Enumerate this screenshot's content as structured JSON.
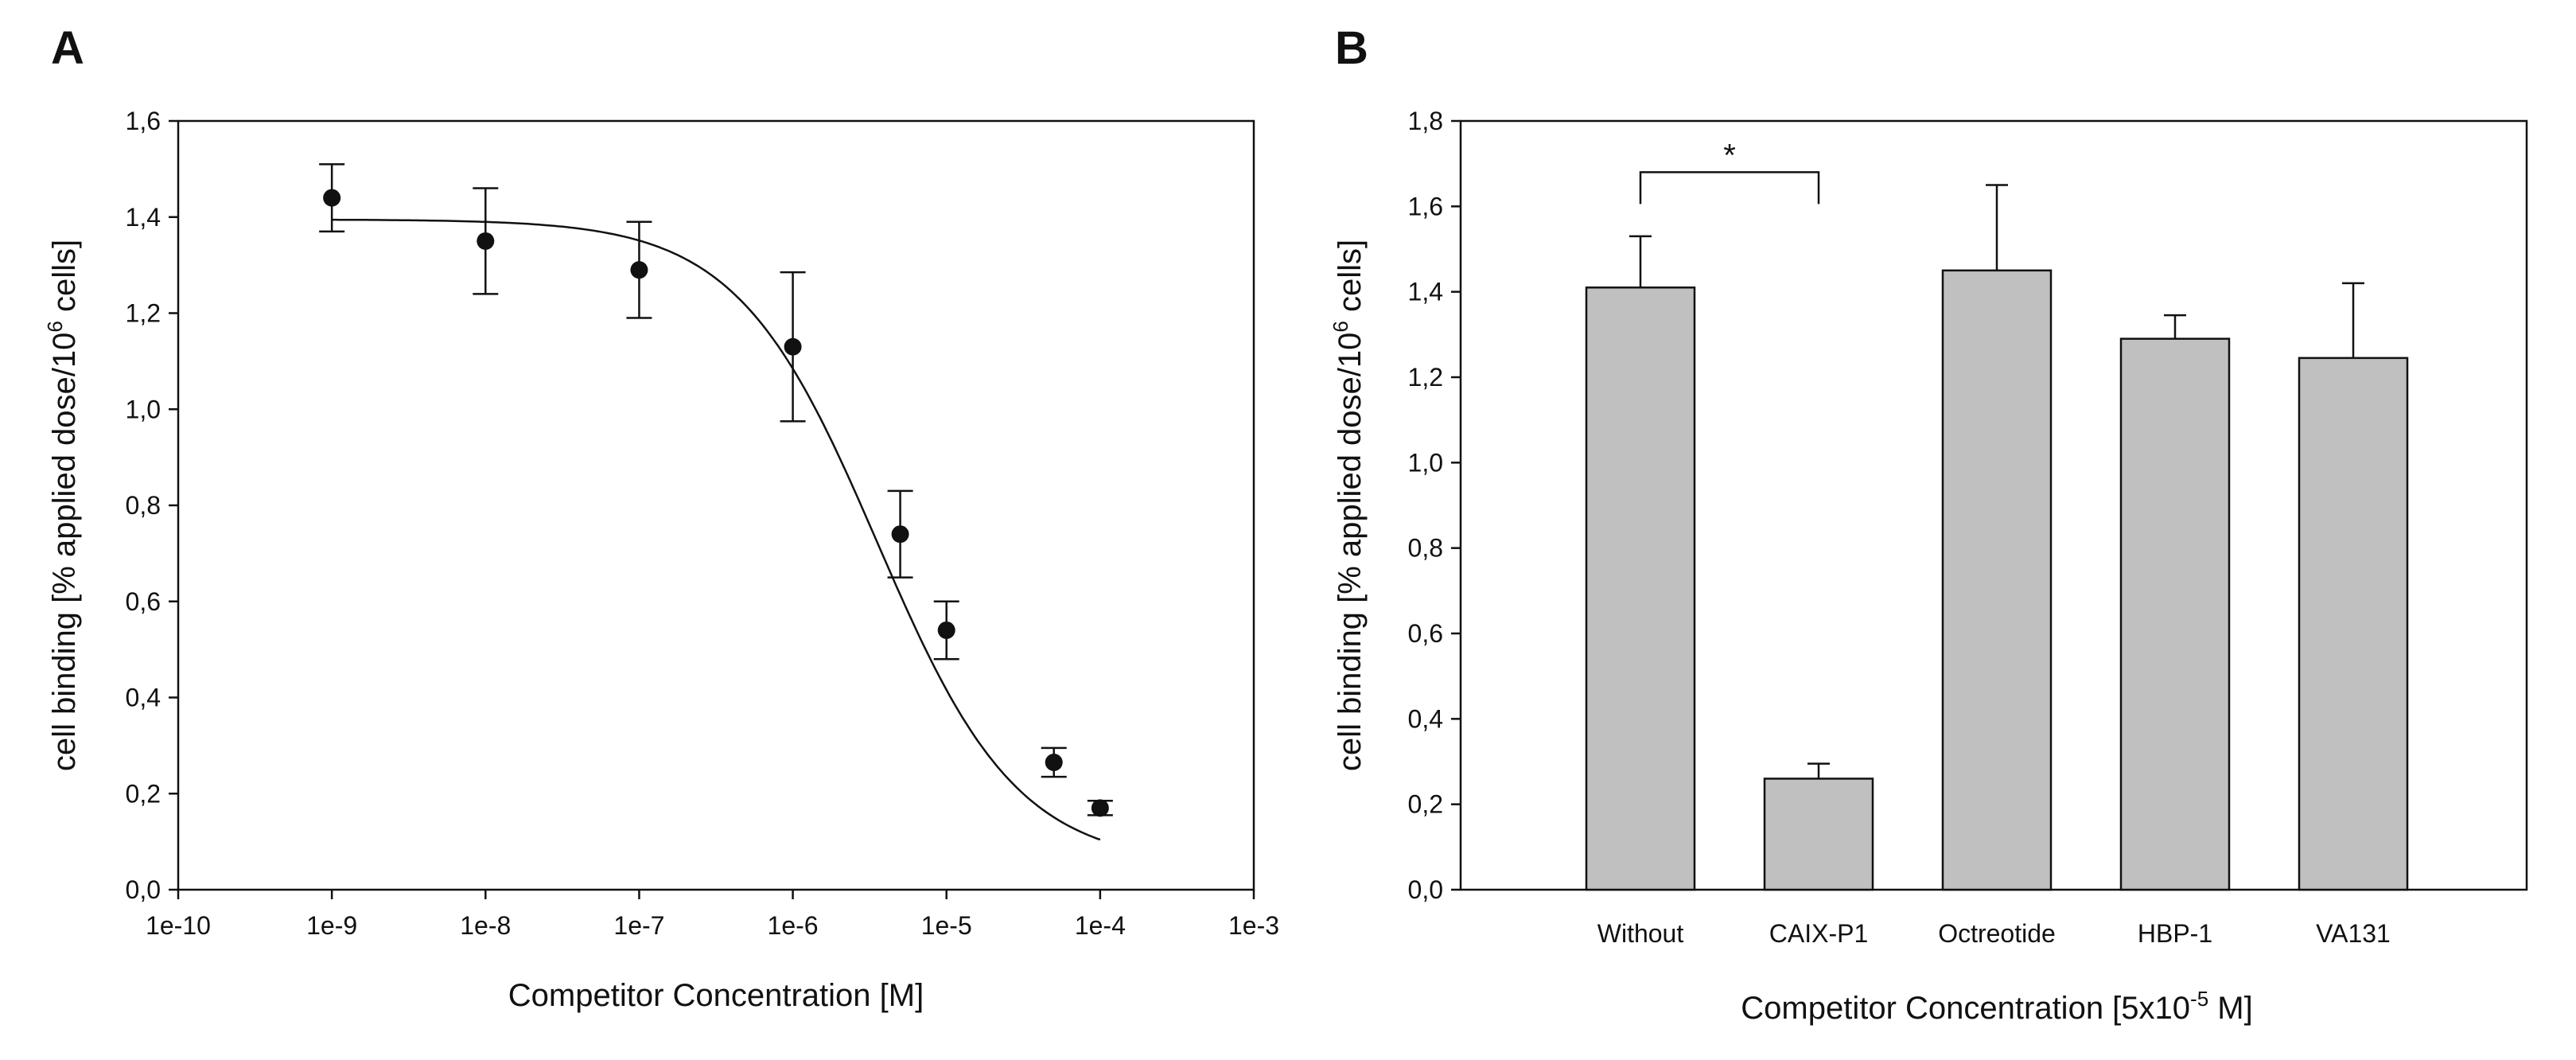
{
  "figure": {
    "panel_a_letter": "A",
    "panel_b_letter": "B"
  },
  "chart_data": [
    {
      "type": "scatter",
      "panel": "A",
      "xscale": "log",
      "xlim_exp": [
        -10,
        -3
      ],
      "x_tick_labels": [
        "1e-10",
        "1e-9",
        "1e-8",
        "1e-7",
        "1e-6",
        "1e-5",
        "1e-4",
        "1e-3"
      ],
      "ylim": [
        0,
        1.6
      ],
      "y_ticks": [
        0,
        0.2,
        0.4,
        0.6,
        0.8,
        1.0,
        1.2,
        1.4,
        1.6
      ],
      "y_tick_labels": [
        "0,0",
        "0,2",
        "0,4",
        "0,6",
        "0,8",
        "1,0",
        "1,2",
        "1,4",
        "1,6"
      ],
      "xlabel": "Competitor Concentration [M]",
      "ylabel_main": "cell binding [% applied dose/10",
      "ylabel_sup": "6",
      "ylabel_tail": " cells]",
      "points": [
        {
          "x": 1e-09,
          "y": 1.44,
          "err": 0.07
        },
        {
          "x": 1e-08,
          "y": 1.35,
          "err": 0.11
        },
        {
          "x": 1e-07,
          "y": 1.29,
          "err": 0.1
        },
        {
          "x": 1e-06,
          "y": 1.13,
          "err": 0.155
        },
        {
          "x": 5e-06,
          "y": 0.74,
          "err": 0.09
        },
        {
          "x": 1e-05,
          "y": 0.54,
          "err": 0.06
        },
        {
          "x": 5e-05,
          "y": 0.265,
          "err": 0.03
        },
        {
          "x": 0.0001,
          "y": 0.17,
          "err": 0.015
        }
      ],
      "fit": {
        "model": "sigmoid",
        "top": 1.395,
        "bottom": 0.05,
        "log_ic50": -5.45,
        "hill": 0.95,
        "x_from_exp": -9,
        "x_to_exp": -4
      }
    },
    {
      "type": "bar",
      "panel": "B",
      "categories": [
        "Without",
        "CAIX-P1",
        "Octreotide",
        "HBP-1",
        "VA131"
      ],
      "values": [
        1.41,
        0.26,
        1.45,
        1.29,
        1.245
      ],
      "errors": [
        0.12,
        0.035,
        0.2,
        0.055,
        0.175
      ],
      "ylim": [
        0,
        1.8
      ],
      "y_ticks": [
        0,
        0.2,
        0.4,
        0.6,
        0.8,
        1.0,
        1.2,
        1.4,
        1.6,
        1.8
      ],
      "y_tick_labels": [
        "0,0",
        "0,2",
        "0,4",
        "0,6",
        "0,8",
        "1,0",
        "1,2",
        "1,4",
        "1,6",
        "1,8"
      ],
      "xlabel_main": "Competitor Concentration [5x10",
      "xlabel_sup": "-5",
      "xlabel_tail": " M]",
      "ylabel_main": "cell binding [% applied dose/10",
      "ylabel_sup": "6",
      "ylabel_tail": " cells]",
      "significance": {
        "from": "Without",
        "to": "CAIX-P1",
        "label": "*",
        "y": 1.68
      }
    }
  ]
}
